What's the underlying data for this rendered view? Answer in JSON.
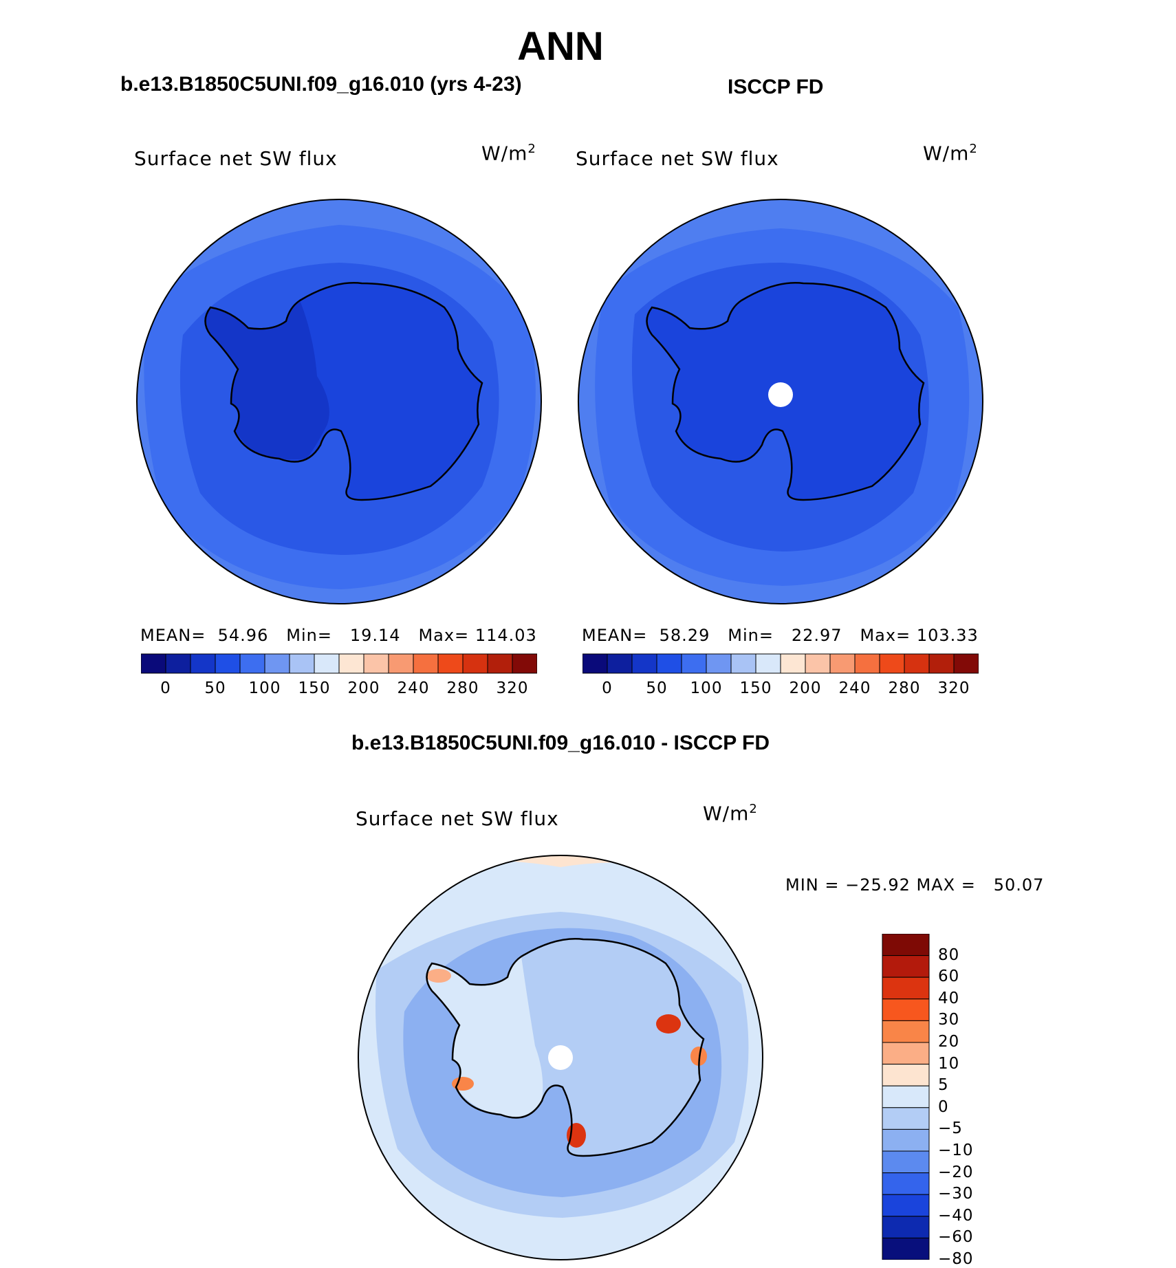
{
  "main_title": "ANN",
  "panels": [
    {
      "title": "b.e13.B1850C5UNI.f09_g16.010 (yrs 4-23)",
      "variable": "Surface net SW flux",
      "unit_base": "W/m",
      "unit_exp": "2",
      "mean_label": "MEAN=",
      "mean": "54.96",
      "min_label": "Min=",
      "min": "19.14",
      "max_label": "Max=",
      "max": "114.03"
    },
    {
      "title": "ISCCP FD",
      "variable": "Surface net SW flux",
      "unit_base": "W/m",
      "unit_exp": "2",
      "mean_label": "MEAN=",
      "mean": "58.29",
      "min_label": "Min=",
      "min": "22.97",
      "max_label": "Max=",
      "max": "103.33"
    }
  ],
  "mean_colorbar": {
    "colors": [
      "#0a0a7a",
      "#0d1f9e",
      "#1436c8",
      "#1f4fe6",
      "#3d6ef0",
      "#6f96f2",
      "#a9c3f5",
      "#d9e8fa",
      "#fde6d3",
      "#fbc4a8",
      "#f89a72",
      "#f5703f",
      "#ee4a1a",
      "#d63210",
      "#b21f0b",
      "#820a07"
    ],
    "ticks": [
      "0",
      "50",
      "100",
      "150",
      "200",
      "240",
      "280",
      "320"
    ]
  },
  "diff": {
    "title": "b.e13.B1850C5UNI.f09_g16.010 - ISCCP FD",
    "variable": "Surface net SW flux",
    "unit_base": "W/m",
    "unit_exp": "2",
    "minmax_text": "MIN = −25.92 MAX =   50.07",
    "colorbar": {
      "colors_top_to_bottom": [
        "#7e0a05",
        "#b31a0c",
        "#dc3410",
        "#f7571e",
        "#f98548",
        "#fbae86",
        "#fde4d0",
        "#d8e8fa",
        "#b3cdf5",
        "#8cb0f1",
        "#5c8aef",
        "#3464ec",
        "#1a44dc",
        "#0d2ab0",
        "#080f7c"
      ],
      "labels": [
        "80",
        "60",
        "40",
        "30",
        "20",
        "10",
        "5",
        "0",
        "−5",
        "−10",
        "−20",
        "−30",
        "−40",
        "−60",
        "−80"
      ]
    }
  },
  "map_colors": {
    "ocean_outer": "#4f7ef0",
    "ocean_mid": "#3d6ef0",
    "ocean_inner": "#2a58e6",
    "ice_shelf": "#1f4fe6",
    "continent": "#1a44dc",
    "west_antarctica": "#1436c8",
    "coast_line": "#000000",
    "diff_base": "#d8e8fa",
    "diff_light": "#b3cdf5",
    "diff_mid": "#8cb0f1",
    "diff_strong": "#5c8aef",
    "diff_warm": "#fbae86",
    "diff_hot": "#dc3410"
  }
}
